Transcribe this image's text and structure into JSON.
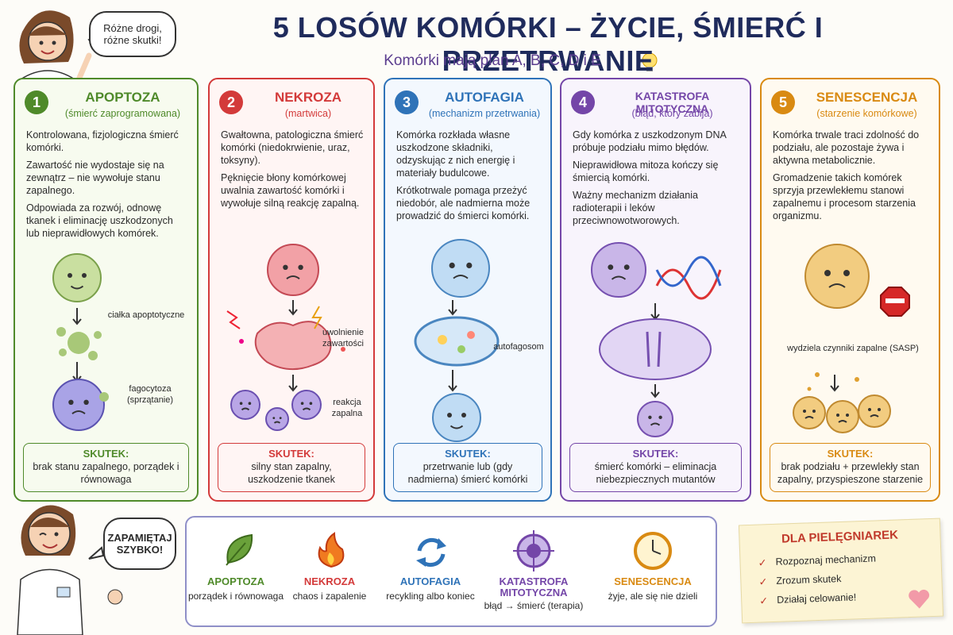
{
  "header": {
    "title": "5 LOSÓW KOMÓRKI – ŻYCIE, ŚMIERĆ I PRZETRWANIE",
    "subtitle": "Komórki mają plan A, B, C, D i E",
    "speech": "Różne drogi, różne skutki!"
  },
  "cards": [
    {
      "number": 1,
      "title": "APOPTOZA",
      "subtitle": "(śmierć zaprogramowana)",
      "paragraphs": [
        "Kontrolowana, fizjologiczna śmierć komórki.",
        "Zawartość nie wydostaje się na zewnątrz – nie wywołuje stanu zapalnego.",
        "Odpowiada za rozwój, odnowę tkanek i eliminację uszkodzonych lub nieprawidłowych komórek."
      ],
      "labels": [
        "ciałka apoptotyczne",
        "fagocytoza (sprzątanie)"
      ],
      "result_label": "SKUTEK:",
      "result": "brak stanu zapalnego, porządek i równowaga"
    },
    {
      "number": 2,
      "title": "NEKROZA",
      "subtitle": "(martwica)",
      "paragraphs": [
        "Gwałtowna, patologiczna śmierć komórki (niedokrwienie, uraz, toksyny).",
        "Pęknięcie błony komórkowej uwalnia zawartość komórki i wywołuje silną reakcję zapalną."
      ],
      "labels": [
        "uwolnienie zawartości",
        "reakcja zapalna"
      ],
      "result_label": "SKUTEK:",
      "result": "silny stan zapalny, uszkodzenie tkanek"
    },
    {
      "number": 3,
      "title": "AUTOFAGIA",
      "subtitle": "(mechanizm przetrwania)",
      "paragraphs": [
        "Komórka rozkłada własne uszkodzone składniki, odzyskując z nich energię i materiały budulcowe.",
        "Krótkotrwale pomaga przeżyć niedobór, ale nadmierna może prowadzić do śmierci komórki."
      ],
      "labels": [
        "autofagosom"
      ],
      "result_label": "SKUTEK:",
      "result": "przetrwanie lub (gdy nadmierna) śmierć komórki"
    },
    {
      "number": 4,
      "title": "KATASTROFA MITOTYCZNA",
      "subtitle": "(błąd, który zabija)",
      "paragraphs": [
        "Gdy komórka z uszkodzonym DNA próbuje podziału mimo błędów.",
        "Nieprawidłowa mitoza kończy się śmiercią komórki.",
        "Ważny mechanizm działania radioterapii i leków przeciwnowotworowych."
      ],
      "labels": [],
      "result_label": "SKUTEK:",
      "result": "śmierć komórki – eliminacja niebezpiecznych mutantów"
    },
    {
      "number": 5,
      "title": "SENESCENCJA",
      "subtitle": "(starzenie komórkowe)",
      "paragraphs": [
        "Komórka trwale traci zdolność do podziału, ale pozostaje żywa i aktywna metabolicznie.",
        "Gromadzenie takich komórek sprzyja przewlekłemu stanowi zapalnemu i procesom starzenia organizmu."
      ],
      "labels": [
        "wydziela czynniki zapalne (SASP)"
      ],
      "result_label": "SKUTEK:",
      "result": "brak podziału + przewlekły stan zapalny, przyspieszone starzenie"
    }
  ],
  "reminder": {
    "speech": "ZAPAMIĘTAJ SZYBKO!",
    "items": [
      {
        "name": "APOPTOZA",
        "description": "porządek i równowaga"
      },
      {
        "name": "NEKROZA",
        "description": "chaos i zapalenie"
      },
      {
        "name": "AUTOFAGIA",
        "description": "recykling albo koniec"
      },
      {
        "name": "KATASTROFA MITOTYCZNA",
        "description": "błąd → śmierć (terapia)"
      },
      {
        "name": "SENESCENCJA",
        "description": "żyje, ale się nie dzieli"
      }
    ]
  },
  "note": {
    "title": "DLA PIELĘGNIAREK",
    "items": [
      "Rozpoznaj mechanizm",
      "Zrozum skutek",
      "Działaj celowanie!"
    ]
  }
}
